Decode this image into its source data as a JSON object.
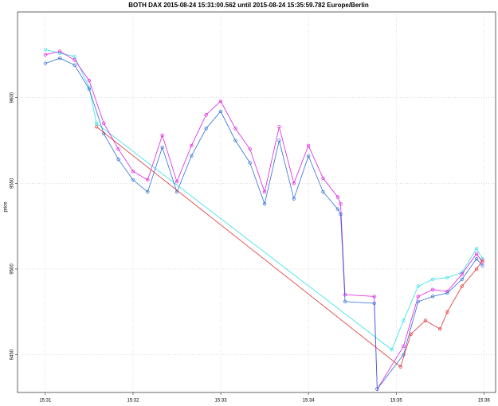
{
  "chart_data": {
    "type": "line",
    "title": "BOTH DAX  2015-08-24 15:31:00.562 until 2015-08-24 15:35:59.782 Europe/Berlin",
    "y_label": "price",
    "xlim": [
      "15:30:41",
      "15:36:08"
    ],
    "xticks": [
      {
        "value": "15:31:00",
        "label": "15:31"
      },
      {
        "value": "15:32:00",
        "label": "15:32"
      },
      {
        "value": "15:33:00",
        "label": "15:33"
      },
      {
        "value": "15:34:00",
        "label": "15:34"
      },
      {
        "value": "15:35:00",
        "label": "15:35"
      },
      {
        "value": "15:36:00",
        "label": "15:36"
      }
    ],
    "ylim": [
      9428,
      9650
    ],
    "yticks": [
      9450,
      9500,
      9550,
      9600
    ],
    "grid": true,
    "series": [
      {
        "color": "#30e0e8",
        "x": [
          "15:31:00",
          "15:31:10",
          "15:31:20",
          "15:31:30",
          "15:31:35",
          "15:34:57",
          "15:35:05",
          "15:35:15",
          "15:35:25",
          "15:35:35",
          "15:35:45",
          "15:35:55",
          "15:35:59"
        ],
        "values": [
          9628,
          9626,
          9624,
          9606,
          9585,
          9453,
          9470,
          9490,
          9494,
          9495,
          9498,
          9512,
          9506
        ]
      },
      {
        "color": "#e020e0",
        "x": [
          "15:31:00",
          "15:31:10",
          "15:31:20",
          "15:31:30",
          "15:31:40",
          "15:31:50",
          "15:32:00",
          "15:32:10",
          "15:32:20",
          "15:32:30",
          "15:32:40",
          "15:32:50",
          "15:33:00",
          "15:33:10",
          "15:33:20",
          "15:33:30",
          "15:33:40",
          "15:33:50",
          "15:34:00",
          "15:34:10",
          "15:34:20",
          "15:34:22",
          "15:34:25",
          "15:34:45",
          "15:34:47",
          "15:35:05",
          "15:35:15",
          "15:35:25",
          "15:35:35",
          "15:35:45",
          "15:35:55",
          "15:35:59"
        ],
        "values": [
          9625,
          9627,
          9622,
          9610,
          9585,
          9570,
          9557,
          9552,
          9578,
          9551,
          9572,
          9590,
          9598,
          9582,
          9570,
          9545,
          9583,
          9550,
          9572,
          9553,
          9542,
          9538,
          9485,
          9484,
          9430,
          9455,
          9484,
          9488,
          9487,
          9497,
          9509,
          9504
        ]
      },
      {
        "color": "#2e6fd8",
        "x": [
          "15:31:00",
          "15:31:10",
          "15:31:20",
          "15:31:30",
          "15:31:40",
          "15:31:50",
          "15:32:00",
          "15:32:10",
          "15:32:20",
          "15:32:30",
          "15:32:40",
          "15:32:50",
          "15:33:00",
          "15:33:10",
          "15:33:20",
          "15:33:30",
          "15:33:40",
          "15:33:50",
          "15:34:00",
          "15:34:10",
          "15:34:20",
          "15:34:22",
          "15:34:25",
          "15:34:45",
          "15:34:47",
          "15:35:05",
          "15:35:15",
          "15:35:25",
          "15:35:35",
          "15:35:45",
          "15:35:55",
          "15:35:59"
        ],
        "values": [
          9620,
          9623,
          9619,
          9605,
          9579,
          9564,
          9552,
          9545,
          9571,
          9545,
          9566,
          9582,
          9592,
          9575,
          9562,
          9538,
          9575,
          9541,
          9566,
          9545,
          9535,
          9532,
          9481,
          9480,
          9430,
          9450,
          9481,
          9484,
          9486,
          9494,
          9506,
          9502
        ]
      },
      {
        "color": "#e03030",
        "x": [
          "15:31:35",
          "15:35:03",
          "15:35:10",
          "15:35:20",
          "15:35:30",
          "15:35:35",
          "15:35:45",
          "15:35:55",
          "15:35:59"
        ],
        "values": [
          9583,
          9443,
          9462,
          9470,
          9465,
          9475,
          9490,
          9500,
          9505
        ]
      }
    ]
  }
}
